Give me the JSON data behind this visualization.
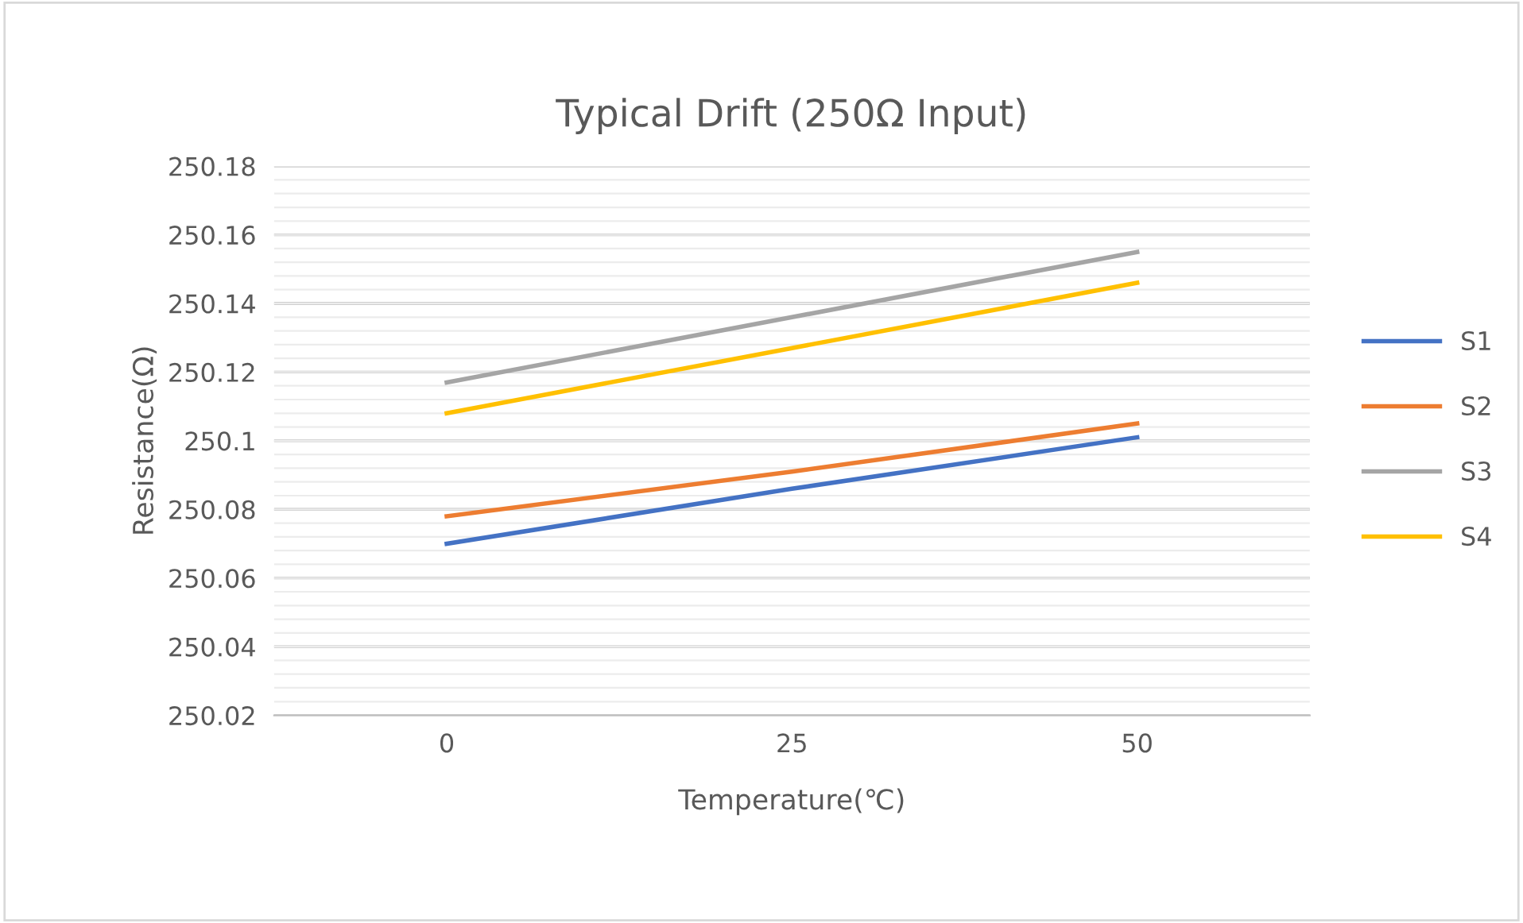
{
  "chart_data": {
    "type": "line",
    "title": "Typical Drift (250Ω Input)",
    "xlabel": "Temperature(℃)",
    "ylabel": "Resistance(Ω)",
    "categories": [
      "0",
      "25",
      "50"
    ],
    "series": [
      {
        "name": "S1",
        "color": "#4472c4",
        "values": [
          250.07,
          250.086,
          250.101
        ]
      },
      {
        "name": "S2",
        "color": "#ed7d31",
        "values": [
          250.078,
          250.091,
          250.105
        ]
      },
      {
        "name": "S3",
        "color": "#a5a5a5",
        "values": [
          250.117,
          250.136,
          250.155
        ]
      },
      {
        "name": "S4",
        "color": "#ffc000",
        "values": [
          250.108,
          250.127,
          250.146
        ]
      }
    ],
    "ylim": [
      250.02,
      250.18
    ],
    "yticks": [
      250.02,
      250.04,
      250.06,
      250.08,
      250.1,
      250.12,
      250.14,
      250.16,
      250.18
    ],
    "grid": "y",
    "legend": "right",
    "marker": "none",
    "line_style": "solid"
  }
}
